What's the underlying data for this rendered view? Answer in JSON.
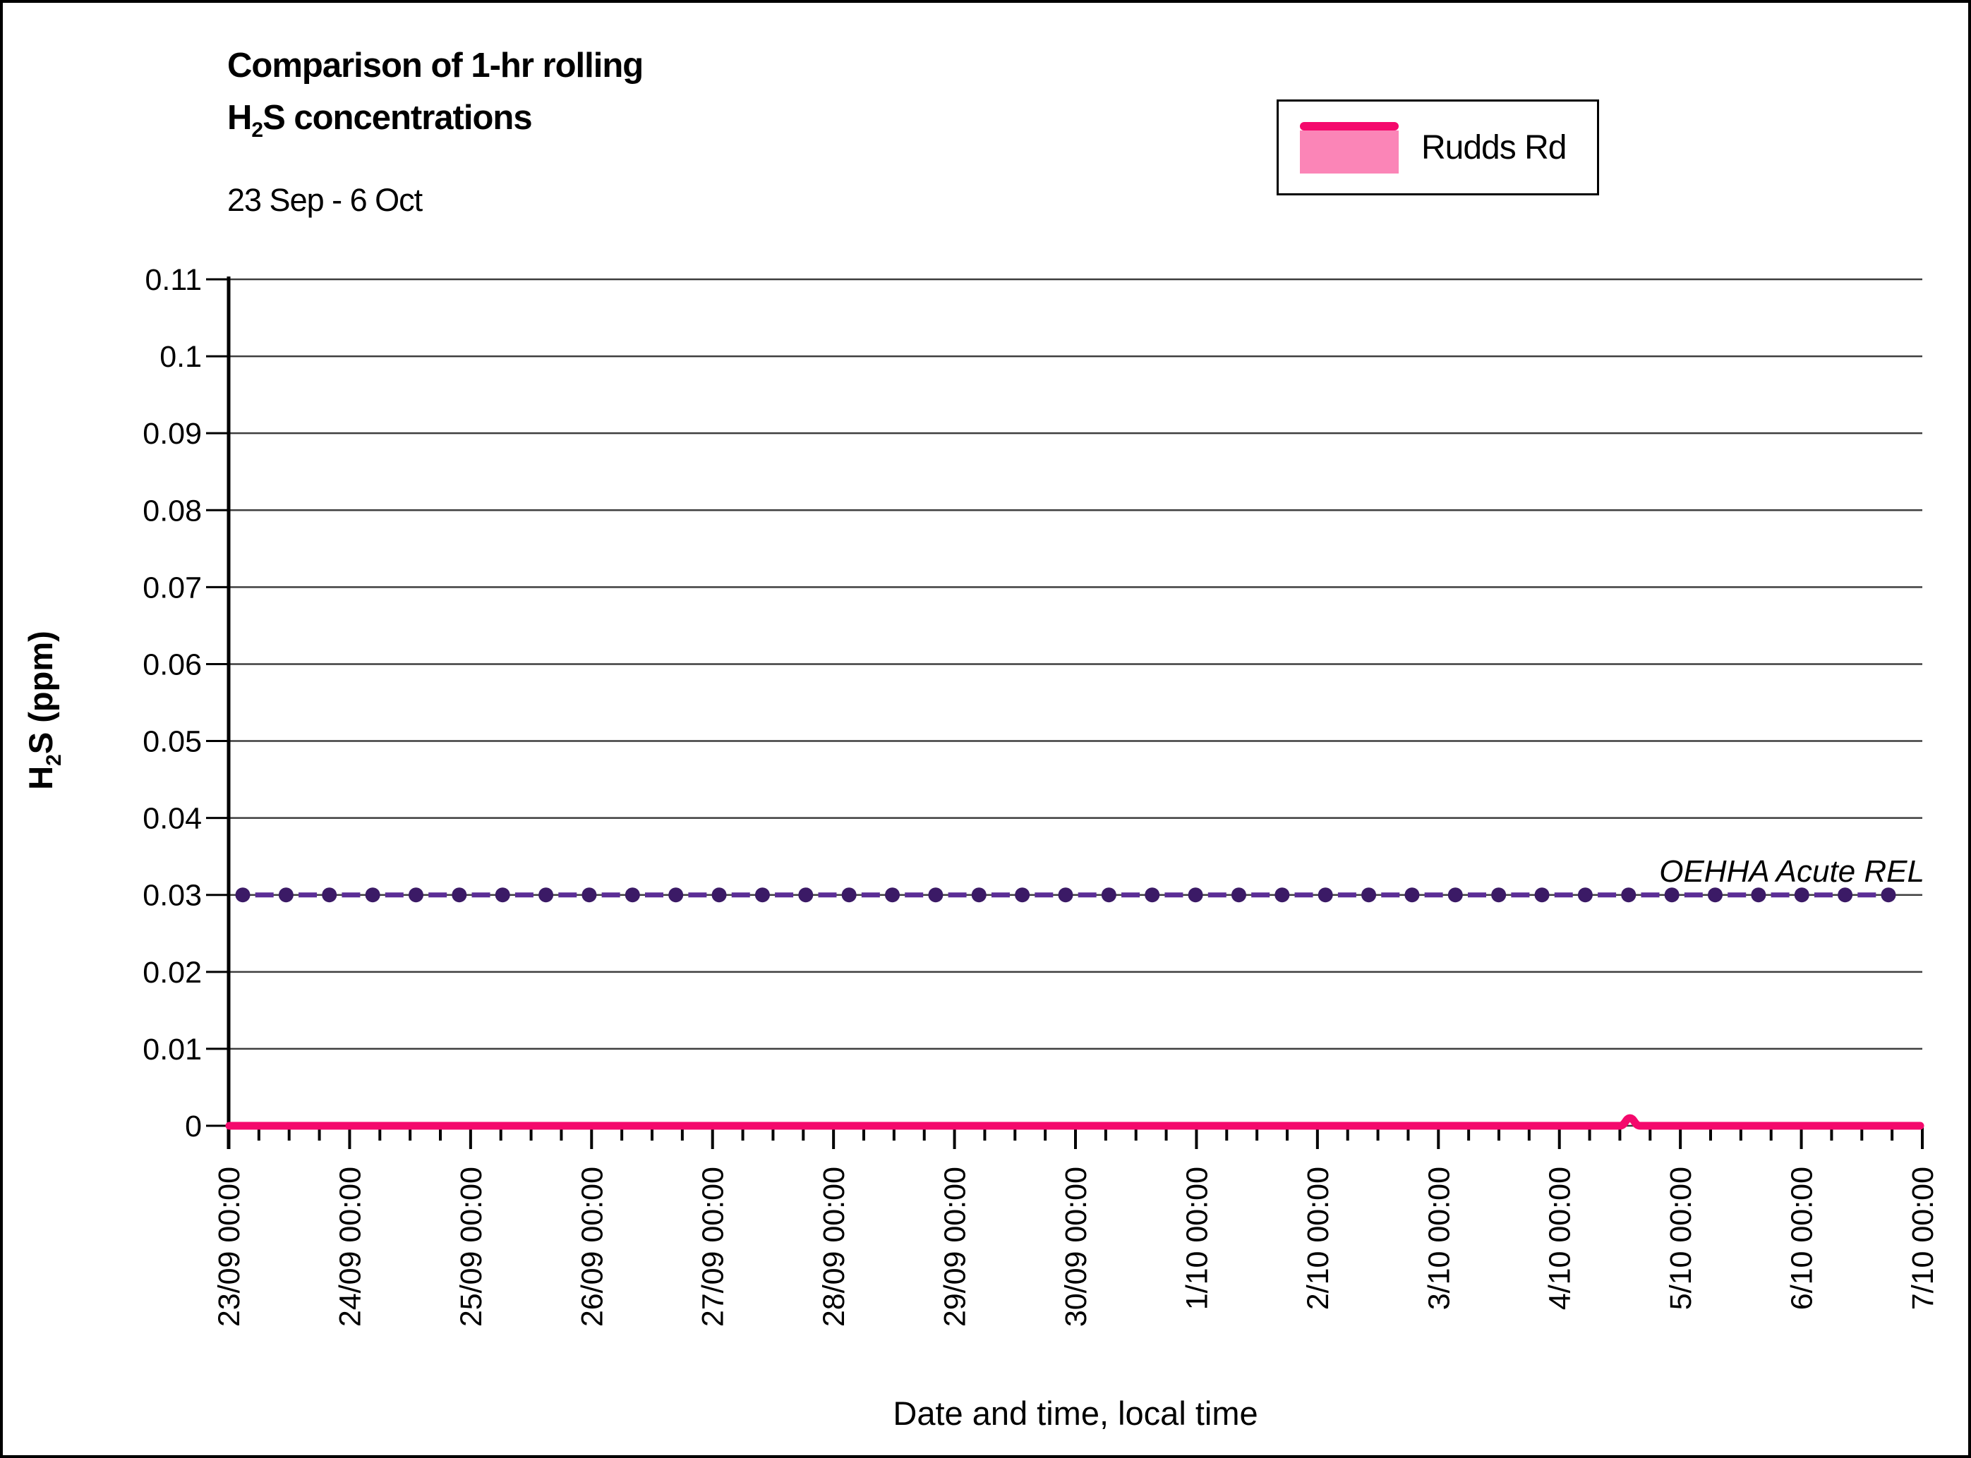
{
  "page": {
    "background": "#FFFFFF",
    "border_color": "#000000"
  },
  "chart": {
    "title": {
      "line1": "Comparison of 1-hr rolling",
      "line2_pre": "H",
      "line2_sub": "2",
      "line2_post": "S concentrations",
      "subtitle": "23 Sep - 6 Oct"
    },
    "legend": {
      "label": "Rudds Rd",
      "line_color": "#F4096C",
      "fill_color": "#FB85B7",
      "border_color": "#000000"
    },
    "y_axis": {
      "title_pre": "H",
      "title_sub": "2",
      "title_post": "S (ppm)",
      "min": 0,
      "max": 0.11,
      "step": 0.01,
      "tick_labels": [
        "0",
        "0.01",
        "0.02",
        "0.03",
        "0.04",
        "0.05",
        "0.06",
        "0.07",
        "0.08",
        "0.09",
        "0.1",
        "0.11"
      ]
    },
    "x_axis": {
      "title": "Date and time, local time",
      "tick_labels": [
        "23/09 00:00",
        "24/09 00:00",
        "25/09 00:00",
        "26/09 00:00",
        "27/09 00:00",
        "28/09 00:00",
        "29/09 00:00",
        "30/09 00:00",
        "1/10 00:00",
        "2/10 00:00",
        "3/10 00:00",
        "4/10 00:00",
        "5/10 00:00",
        "6/10 00:00",
        "7/10 00:00"
      ],
      "minor_tick_interval_hours": 6
    },
    "annotation": {
      "label": "OEHHA Acute REL",
      "value": 0.03
    },
    "colors": {
      "gridline": "#3E3E3E",
      "axis": "#000000",
      "rel_marker": "#3B1A66",
      "rel_dash": "#5B2D96",
      "series_line": "#F4096C",
      "series_fill": "#FB85B7"
    }
  },
  "chart_data": {
    "type": "line",
    "title": "Comparison of 1-hr rolling H2S concentrations",
    "subtitle": "23 Sep - 6 Oct",
    "xlabel": "Date and time, local time",
    "ylabel": "H2S (ppm)",
    "ylim": [
      0,
      0.11
    ],
    "y_ticks": [
      0,
      0.01,
      0.02,
      0.03,
      0.04,
      0.05,
      0.06,
      0.07,
      0.08,
      0.09,
      0.1,
      0.11
    ],
    "x_range": [
      "23/09 00:00",
      "7/10 00:00"
    ],
    "x_tick_labels": [
      "23/09 00:00",
      "24/09 00:00",
      "25/09 00:00",
      "26/09 00:00",
      "27/09 00:00",
      "28/09 00:00",
      "29/09 00:00",
      "30/09 00:00",
      "1/10 00:00",
      "2/10 00:00",
      "3/10 00:00",
      "4/10 00:00",
      "5/10 00:00",
      "6/10 00:00",
      "7/10 00:00"
    ],
    "grid": "horizontal",
    "legend_position": "top-right",
    "series": [
      {
        "name": "Rudds Rd",
        "type": "area",
        "line_color": "#F4096C",
        "fill_color": "#FB85B7",
        "x": [
          "23/09 00:00",
          "24/09 00:00",
          "25/09 00:00",
          "26/09 00:00",
          "27/09 00:00",
          "28/09 00:00",
          "29/09 00:00",
          "30/09 00:00",
          "1/10 00:00",
          "2/10 00:00",
          "3/10 00:00",
          "4/10 00:00",
          "4/10 14:00",
          "5/10 00:00",
          "6/10 00:00",
          "7/10 00:00"
        ],
        "values": [
          0,
          0,
          0,
          0,
          0,
          0,
          0,
          0,
          0,
          0,
          0,
          0,
          0.001,
          0,
          0,
          0
        ],
        "note": "Flat at ~0.000 ppm for the whole period apart from a brief blip of ~0.001 ppm around 4/10 14:00"
      },
      {
        "name": "OEHHA Acute REL",
        "type": "reference_line",
        "value": 0.03,
        "style": "dashed line with circular markers",
        "marker_color": "#3B1A66",
        "dash_color": "#5B2D96",
        "label": "OEHHA Acute REL"
      }
    ]
  }
}
